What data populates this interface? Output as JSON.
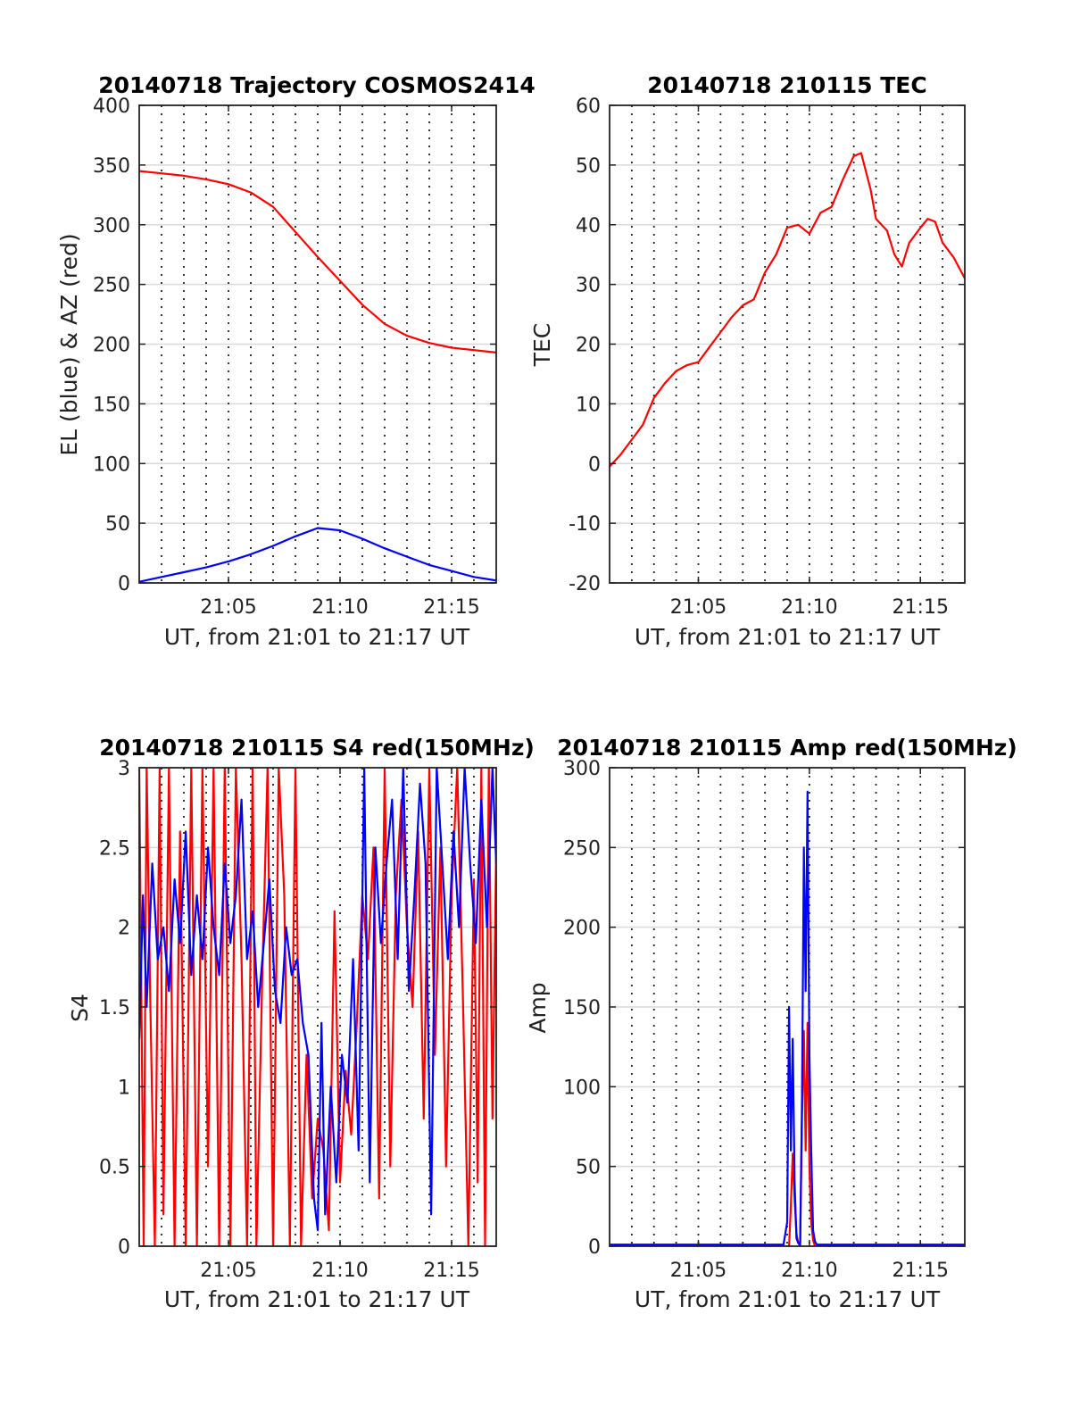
{
  "chart_data": [
    {
      "id": "trajectory",
      "type": "line",
      "title": "20140718 Trajectory COSMOS2414",
      "xlabel": "UT, from 21:01 to 21:17 UT",
      "ylabel": "EL (blue) & AZ (red)",
      "xlim": [
        "21:01",
        "21:17"
      ],
      "ylim": [
        0,
        400
      ],
      "yticks": [
        0,
        50,
        100,
        150,
        200,
        250,
        300,
        350,
        400
      ],
      "ytick_labels": [
        "0",
        "50",
        "100",
        "150",
        "200",
        "250",
        "300",
        "350",
        "400"
      ],
      "xticks": [
        "21:05",
        "21:10",
        "21:15"
      ],
      "x_dotted_grid": [
        "21:02",
        "21:03",
        "21:04",
        "21:05",
        "21:06",
        "21:07",
        "21:08",
        "21:09",
        "21:10",
        "21:11",
        "21:12",
        "21:13",
        "21:14",
        "21:15",
        "21:16"
      ],
      "grid": true,
      "series": [
        {
          "color": "#ff0000",
          "x": [
            "21:01",
            "21:02",
            "21:03",
            "21:04",
            "21:05",
            "21:06",
            "21:07",
            "21:08",
            "21:09",
            "21:10",
            "21:11",
            "21:12",
            "21:13",
            "21:14",
            "21:15",
            "21:16",
            "21:17"
          ],
          "values": [
            345,
            343,
            341,
            338,
            334,
            327,
            315,
            294,
            273,
            253,
            233,
            217,
            207,
            201,
            197,
            195,
            193
          ]
        },
        {
          "color": "#0000ff",
          "x": [
            "21:01",
            "21:02",
            "21:03",
            "21:04",
            "21:05",
            "21:06",
            "21:07",
            "21:08",
            "21:09",
            "21:10",
            "21:11",
            "21:12",
            "21:13",
            "21:14",
            "21:15",
            "21:16",
            "21:17"
          ],
          "values": [
            1,
            5,
            9,
            13,
            18,
            24,
            31,
            39,
            46,
            44,
            37,
            29,
            22,
            15,
            10,
            5,
            2
          ]
        }
      ]
    },
    {
      "id": "tec",
      "type": "line",
      "title": "20140718 210115 TEC",
      "xlabel": "UT, from 21:01 to 21:17 UT",
      "ylabel": "TEC",
      "xlim": [
        "21:01",
        "21:17"
      ],
      "ylim": [
        -20,
        60
      ],
      "yticks": [
        -20,
        -10,
        0,
        10,
        20,
        30,
        40,
        50,
        60
      ],
      "ytick_labels": [
        "-20",
        "-10",
        "0",
        "10",
        "20",
        "30",
        "40",
        "50",
        "60"
      ],
      "xticks": [
        "21:05",
        "21:10",
        "21:15"
      ],
      "x_dotted_grid": [
        "21:02",
        "21:03",
        "21:04",
        "21:05",
        "21:06",
        "21:07",
        "21:08",
        "21:09",
        "21:10",
        "21:11",
        "21:12",
        "21:13",
        "21:14",
        "21:15",
        "21:16"
      ],
      "grid": true,
      "series": [
        {
          "color": "#ff0000",
          "x": [
            "21:01:00",
            "21:01:30",
            "21:02:00",
            "21:02:30",
            "21:03:00",
            "21:03:30",
            "21:04:00",
            "21:04:30",
            "21:05:00",
            "21:05:30",
            "21:06:00",
            "21:06:30",
            "21:07:00",
            "21:07:30",
            "21:08:00",
            "21:08:30",
            "21:09:00",
            "21:09:30",
            "21:10:00",
            "21:10:30",
            "21:11:00",
            "21:11:30",
            "21:12:00",
            "21:12:20",
            "21:12:45",
            "21:13:00",
            "21:13:30",
            "21:13:50",
            "21:14:10",
            "21:14:30",
            "21:15:00",
            "21:15:20",
            "21:15:40",
            "21:16:00",
            "21:16:30",
            "21:17:00"
          ],
          "values": [
            -0.5,
            1.5,
            4,
            6.5,
            11,
            13.5,
            15.5,
            16.5,
            17,
            19.5,
            22,
            24.5,
            26.5,
            27.5,
            32,
            35,
            39.5,
            40,
            38.5,
            42,
            43,
            47.5,
            51.5,
            52,
            46,
            41,
            39,
            35,
            33,
            37,
            39.5,
            41,
            40.5,
            37,
            34.5,
            31
          ]
        }
      ]
    },
    {
      "id": "s4",
      "type": "line",
      "title": "20140718 210115 S4 red(150MHz)",
      "xlabel": "UT, from 21:01 to 21:17 UT",
      "ylabel": "S4",
      "xlim": [
        "21:01",
        "21:17"
      ],
      "ylim": [
        0,
        3
      ],
      "yticks": [
        0,
        0.5,
        1,
        1.5,
        2,
        2.5,
        3
      ],
      "ytick_labels": [
        "0",
        "0.5",
        "1",
        "1.5",
        "2",
        "2.5",
        "3"
      ],
      "xticks": [
        "21:05",
        "21:10",
        "21:15"
      ],
      "x_dotted_grid": [
        "21:02",
        "21:03",
        "21:04",
        "21:05",
        "21:06",
        "21:07",
        "21:08",
        "21:09",
        "21:10",
        "21:11",
        "21:12",
        "21:13",
        "21:14",
        "21:15",
        "21:16"
      ],
      "grid": true,
      "series": [
        {
          "color": "#ff0000",
          "x": [
            "21:01:00",
            "21:01:12",
            "21:01:20",
            "21:01:30",
            "21:01:42",
            "21:01:55",
            "21:02:05",
            "21:02:20",
            "21:02:35",
            "21:02:50",
            "21:03:05",
            "21:03:20",
            "21:03:35",
            "21:03:50",
            "21:04:05",
            "21:04:20",
            "21:04:35",
            "21:04:50",
            "21:05:05",
            "21:05:20",
            "21:05:35",
            "21:05:50",
            "21:06:05",
            "21:06:15",
            "21:06:30",
            "21:06:45",
            "21:07:00",
            "21:07:15",
            "21:07:30",
            "21:07:45",
            "21:08:00",
            "21:08:15",
            "21:08:30",
            "21:08:45",
            "21:09:00",
            "21:09:15",
            "21:09:30",
            "21:09:45",
            "21:10:00",
            "21:10:15",
            "21:10:30",
            "21:10:45",
            "21:11:00",
            "21:11:15",
            "21:11:30",
            "21:11:45",
            "21:12:00",
            "21:12:15",
            "21:12:30",
            "21:12:45",
            "21:13:00",
            "21:13:15",
            "21:13:30",
            "21:13:45",
            "21:14:00",
            "21:14:15",
            "21:14:30",
            "21:14:45",
            "21:15:00",
            "21:15:15",
            "21:15:30",
            "21:15:45",
            "21:16:00",
            "21:16:10",
            "21:16:20",
            "21:16:30",
            "21:16:40",
            "21:16:50",
            "21:17:00"
          ],
          "values": [
            3,
            0,
            3,
            1.5,
            0,
            3,
            0.2,
            3,
            0,
            2.6,
            0,
            3,
            0,
            3,
            0.5,
            3,
            0,
            3,
            0,
            3,
            1.8,
            0,
            3,
            0,
            1.6,
            3,
            0,
            3,
            2.2,
            0,
            3,
            0,
            1.2,
            0.3,
            0.8,
            0.6,
            0.1,
            2.1,
            0.4,
            1.1,
            0.7,
            1.4,
            2.2,
            1.8,
            2.5,
            0.3,
            3,
            0.5,
            2.2,
            2.8,
            2.0,
            1.5,
            2.6,
            0.8,
            3,
            1.2,
            2.5,
            0.5,
            2.2,
            3,
            1.6,
            0,
            2.3,
            0.4,
            3,
            0,
            3,
            0.8,
            2.5
          ]
        },
        {
          "color": "#0000ff",
          "x": [
            "21:01:00",
            "21:01:10",
            "21:01:20",
            "21:01:35",
            "21:01:50",
            "21:02:05",
            "21:02:20",
            "21:02:35",
            "21:02:50",
            "21:03:05",
            "21:03:20",
            "21:03:35",
            "21:03:50",
            "21:04:05",
            "21:04:20",
            "21:04:35",
            "21:04:50",
            "21:05:05",
            "21:05:20",
            "21:05:35",
            "21:05:50",
            "21:06:05",
            "21:06:20",
            "21:06:35",
            "21:06:50",
            "21:07:05",
            "21:07:20",
            "21:07:35",
            "21:07:50",
            "21:08:05",
            "21:08:20",
            "21:08:35",
            "21:08:50",
            "21:09:00",
            "21:09:10",
            "21:09:20",
            "21:09:35",
            "21:09:50",
            "21:10:05",
            "21:10:20",
            "21:10:35",
            "21:10:50",
            "21:11:05",
            "21:11:20",
            "21:11:35",
            "21:11:50",
            "21:12:05",
            "21:12:20",
            "21:12:35",
            "21:12:50",
            "21:13:05",
            "21:13:20",
            "21:13:35",
            "21:13:50",
            "21:14:05",
            "21:14:20",
            "21:14:35",
            "21:14:50",
            "21:15:05",
            "21:15:20",
            "21:15:35",
            "21:15:50",
            "21:16:05",
            "21:16:20",
            "21:16:35",
            "21:16:50",
            "21:17:00"
          ],
          "values": [
            1.3,
            2.2,
            1.5,
            2.4,
            1.8,
            2.0,
            1.6,
            2.3,
            1.9,
            2.6,
            1.7,
            2.2,
            1.8,
            2.5,
            2.0,
            1.7,
            2.4,
            1.9,
            2.2,
            2.8,
            1.8,
            2.1,
            1.5,
            1.9,
            2.3,
            1.6,
            1.4,
            2.0,
            1.7,
            1.8,
            1.4,
            1.2,
            0.3,
            0.1,
            1.4,
            0.2,
            1.0,
            0.4,
            1.2,
            0.9,
            1.8,
            0.6,
            3,
            0.4,
            2.5,
            1.9,
            2.4,
            2.8,
            1.8,
            3,
            1.6,
            2.2,
            2.9,
            2.4,
            0.2,
            3,
            2.4,
            1.8,
            2.6,
            2.0,
            3,
            2.4,
            1.9,
            2.8,
            2.0,
            3,
            2.4
          ]
        }
      ]
    },
    {
      "id": "amp",
      "type": "line",
      "title": "20140718 210115 Amp red(150MHz)",
      "xlabel": "UT, from 21:01 to 21:17 UT",
      "ylabel": "Amp",
      "xlim": [
        "21:01",
        "21:17"
      ],
      "ylim": [
        0,
        300
      ],
      "yticks": [
        0,
        50,
        100,
        150,
        200,
        250,
        300
      ],
      "ytick_labels": [
        "0",
        "50",
        "100",
        "150",
        "200",
        "250",
        "300"
      ],
      "xticks": [
        "21:05",
        "21:10",
        "21:15"
      ],
      "x_dotted_grid": [
        "21:02",
        "21:03",
        "21:04",
        "21:05",
        "21:06",
        "21:07",
        "21:08",
        "21:09",
        "21:10",
        "21:11",
        "21:12",
        "21:13",
        "21:14",
        "21:15",
        "21:16"
      ],
      "grid": true,
      "series": [
        {
          "color": "#ff0000",
          "x": [
            "21:01:00",
            "21:08:55",
            "21:09:05",
            "21:09:10",
            "21:09:15",
            "21:09:20",
            "21:09:25",
            "21:09:30",
            "21:09:35",
            "21:09:40",
            "21:09:45",
            "21:09:50",
            "21:09:55",
            "21:10:00",
            "21:10:05",
            "21:10:10",
            "21:10:15",
            "21:10:20",
            "21:17:00"
          ],
          "values": [
            0,
            0,
            0,
            25,
            58,
            30,
            8,
            2,
            0,
            80,
            135,
            60,
            140,
            50,
            15,
            4,
            0,
            0,
            0
          ]
        },
        {
          "color": "#0000ff",
          "x": [
            "21:01:00",
            "21:04:00",
            "21:08:50",
            "21:09:00",
            "21:09:05",
            "21:09:10",
            "21:09:15",
            "21:09:20",
            "21:09:25",
            "21:09:30",
            "21:09:35",
            "21:09:40",
            "21:09:45",
            "21:09:50",
            "21:09:55",
            "21:10:00",
            "21:10:05",
            "21:10:10",
            "21:10:15",
            "21:10:20",
            "21:10:30",
            "21:13:00",
            "21:17:00"
          ],
          "values": [
            1,
            1,
            1,
            15,
            150,
            60,
            130,
            40,
            5,
            2,
            1,
            90,
            250,
            160,
            285,
            120,
            60,
            10,
            3,
            1,
            1,
            1,
            1
          ]
        }
      ]
    }
  ]
}
